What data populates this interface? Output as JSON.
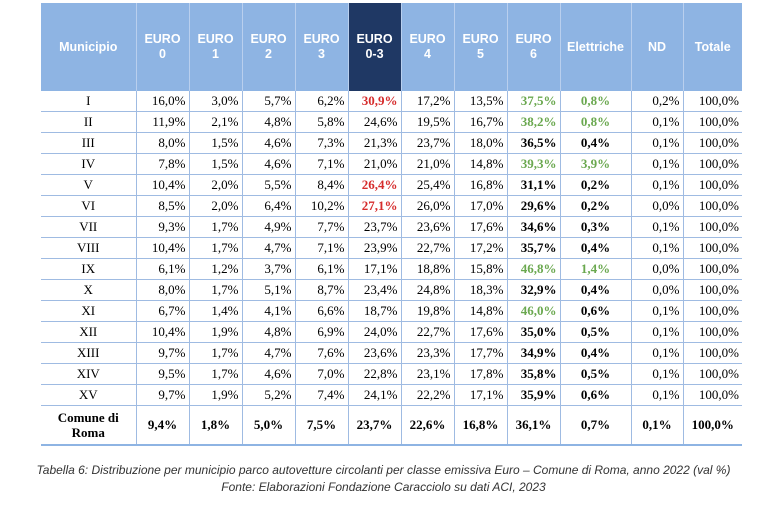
{
  "table": {
    "headers": {
      "municipio": "Municipio",
      "euro0": [
        "EURO",
        "0"
      ],
      "euro1": [
        "EURO",
        "1"
      ],
      "euro2": [
        "EURO",
        "2"
      ],
      "euro3": [
        "EURO",
        "3"
      ],
      "euro03": [
        "EURO",
        "0-3"
      ],
      "euro4": [
        "EURO",
        "4"
      ],
      "euro5": [
        "EURO",
        "5"
      ],
      "euro6": [
        "EURO",
        "6"
      ],
      "elettriche": "Elettriche",
      "nd": "ND",
      "totale": "Totale"
    },
    "colors": {
      "header_bg": "#8eb4e3",
      "header_highlight_bg": "#1f3864",
      "header_text": "#ffffff",
      "red_value": "#d62c2c",
      "green_value": "#6aa84f"
    },
    "rows": [
      {
        "mun": "I",
        "e0": "16,0%",
        "e1": "3,0%",
        "e2": "5,7%",
        "e3": "6,2%",
        "e03": "30,9%",
        "e4": "17,2%",
        "e5": "13,5%",
        "e6": "37,5%",
        "el": "0,8%",
        "nd": "0,2%",
        "tot": "100,0%"
      },
      {
        "mun": "II",
        "e0": "11,9%",
        "e1": "2,1%",
        "e2": "4,8%",
        "e3": "5,8%",
        "e03": "24,6%",
        "e4": "19,5%",
        "e5": "16,7%",
        "e6": "38,2%",
        "el": "0,8%",
        "nd": "0,1%",
        "tot": "100,0%"
      },
      {
        "mun": "III",
        "e0": "8,0%",
        "e1": "1,5%",
        "e2": "4,6%",
        "e3": "7,3%",
        "e03": "21,3%",
        "e4": "23,7%",
        "e5": "18,0%",
        "e6": "36,5%",
        "el": "0,4%",
        "nd": "0,1%",
        "tot": "100,0%"
      },
      {
        "mun": "IV",
        "e0": "7,8%",
        "e1": "1,5%",
        "e2": "4,6%",
        "e3": "7,1%",
        "e03": "21,0%",
        "e4": "21,0%",
        "e5": "14,8%",
        "e6": "39,3%",
        "el": "3,9%",
        "nd": "0,1%",
        "tot": "100,0%"
      },
      {
        "mun": "V",
        "e0": "10,4%",
        "e1": "2,0%",
        "e2": "5,5%",
        "e3": "8,4%",
        "e03": "26,4%",
        "e4": "25,4%",
        "e5": "16,8%",
        "e6": "31,1%",
        "el": "0,2%",
        "nd": "0,1%",
        "tot": "100,0%"
      },
      {
        "mun": "VI",
        "e0": "8,5%",
        "e1": "2,0%",
        "e2": "6,4%",
        "e3": "10,2%",
        "e03": "27,1%",
        "e4": "26,0%",
        "e5": "17,0%",
        "e6": "29,6%",
        "el": "0,2%",
        "nd": "0,0%",
        "tot": "100,0%"
      },
      {
        "mun": "VII",
        "e0": "9,3%",
        "e1": "1,7%",
        "e2": "4,9%",
        "e3": "7,7%",
        "e03": "23,7%",
        "e4": "23,6%",
        "e5": "17,6%",
        "e6": "34,6%",
        "el": "0,3%",
        "nd": "0,1%",
        "tot": "100,0%"
      },
      {
        "mun": "VIII",
        "e0": "10,4%",
        "e1": "1,7%",
        "e2": "4,7%",
        "e3": "7,1%",
        "e03": "23,9%",
        "e4": "22,7%",
        "e5": "17,2%",
        "e6": "35,7%",
        "el": "0,4%",
        "nd": "0,1%",
        "tot": "100,0%"
      },
      {
        "mun": "IX",
        "e0": "6,1%",
        "e1": "1,2%",
        "e2": "3,7%",
        "e3": "6,1%",
        "e03": "17,1%",
        "e4": "18,8%",
        "e5": "15,8%",
        "e6": "46,8%",
        "el": "1,4%",
        "nd": "0,0%",
        "tot": "100,0%"
      },
      {
        "mun": "X",
        "e0": "8,0%",
        "e1": "1,7%",
        "e2": "5,1%",
        "e3": "8,7%",
        "e03": "23,4%",
        "e4": "24,8%",
        "e5": "18,3%",
        "e6": "32,9%",
        "el": "0,4%",
        "nd": "0,0%",
        "tot": "100,0%"
      },
      {
        "mun": "XI",
        "e0": "6,7%",
        "e1": "1,4%",
        "e2": "4,1%",
        "e3": "6,6%",
        "e03": "18,7%",
        "e4": "19,8%",
        "e5": "14,8%",
        "e6": "46,0%",
        "el": "0,6%",
        "nd": "0,1%",
        "tot": "100,0%"
      },
      {
        "mun": "XII",
        "e0": "10,4%",
        "e1": "1,9%",
        "e2": "4,8%",
        "e3": "6,9%",
        "e03": "24,0%",
        "e4": "22,7%",
        "e5": "17,6%",
        "e6": "35,0%",
        "el": "0,5%",
        "nd": "0,1%",
        "tot": "100,0%"
      },
      {
        "mun": "XIII",
        "e0": "9,7%",
        "e1": "1,7%",
        "e2": "4,7%",
        "e3": "7,6%",
        "e03": "23,6%",
        "e4": "23,3%",
        "e5": "17,7%",
        "e6": "34,9%",
        "el": "0,4%",
        "nd": "0,1%",
        "tot": "100,0%"
      },
      {
        "mun": "XIV",
        "e0": "9,5%",
        "e1": "1,7%",
        "e2": "4,6%",
        "e3": "7,0%",
        "e03": "22,8%",
        "e4": "23,1%",
        "e5": "17,8%",
        "e6": "35,8%",
        "el": "0,5%",
        "nd": "0,1%",
        "tot": "100,0%"
      },
      {
        "mun": "XV",
        "e0": "9,7%",
        "e1": "1,9%",
        "e2": "5,2%",
        "e3": "7,4%",
        "e03": "24,1%",
        "e4": "22,2%",
        "e5": "17,1%",
        "e6": "35,9%",
        "el": "0,6%",
        "nd": "0,1%",
        "tot": "100,0%"
      }
    ],
    "total": {
      "mun_line1": "Comune di",
      "mun_line2": "Roma",
      "e0": "9,4%",
      "e1": "1,8%",
      "e2": "5,0%",
      "e3": "7,5%",
      "e03": "23,7%",
      "e4": "22,6%",
      "e5": "16,8%",
      "e6": "36,1%",
      "el": "0,7%",
      "nd": "0,1%",
      "tot": "100,0%"
    }
  },
  "caption": {
    "line1": "Tabella 6: Distribuzione per municipio parco autovetture circolanti per classe emissiva Euro – Comune di Roma, anno 2022 (val %)",
    "line2": "Fonte: Elaborazioni Fondazione Caracciolo su dati ACI, 2023"
  }
}
